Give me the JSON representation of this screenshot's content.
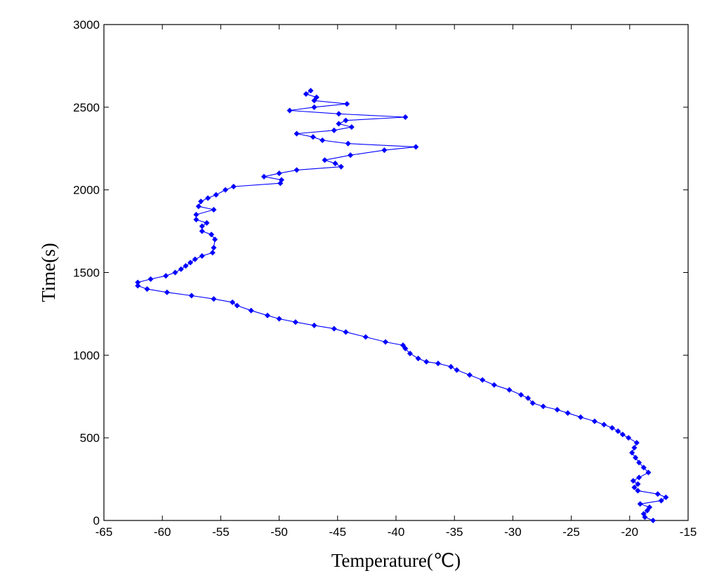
{
  "chart_data": {
    "type": "line",
    "title": "",
    "xlabel": "Temperature(℃)",
    "ylabel": "Time(s)",
    "xlim": [
      -65,
      -15
    ],
    "ylim": [
      0,
      3000
    ],
    "xticks": [
      -65,
      -60,
      -55,
      -50,
      -45,
      -40,
      -35,
      -30,
      -25,
      -20,
      -15
    ],
    "yticks": [
      0,
      500,
      1000,
      1500,
      2000,
      2500,
      3000
    ],
    "grid": false,
    "legend": "none",
    "series": [
      {
        "color": "#0000ff",
        "marker": "diamond",
        "points": [
          [
            -18.0,
            0
          ],
          [
            -18.7,
            20
          ],
          [
            -18.8,
            40
          ],
          [
            -18.5,
            60
          ],
          [
            -18.3,
            80
          ],
          [
            -19.1,
            100
          ],
          [
            -17.3,
            120
          ],
          [
            -16.9,
            140
          ],
          [
            -17.6,
            160
          ],
          [
            -19.3,
            180
          ],
          [
            -19.6,
            200
          ],
          [
            -19.3,
            220
          ],
          [
            -19.7,
            240
          ],
          [
            -19.2,
            260
          ],
          [
            -18.4,
            290
          ],
          [
            -18.8,
            320
          ],
          [
            -19.2,
            350
          ],
          [
            -19.5,
            380
          ],
          [
            -19.8,
            410
          ],
          [
            -19.6,
            440
          ],
          [
            -19.4,
            470
          ],
          [
            -20.1,
            500
          ],
          [
            -20.6,
            520
          ],
          [
            -21.0,
            540
          ],
          [
            -21.5,
            560
          ],
          [
            -22.2,
            580
          ],
          [
            -23.0,
            600
          ],
          [
            -24.2,
            625
          ],
          [
            -25.3,
            650
          ],
          [
            -26.2,
            670
          ],
          [
            -27.4,
            690
          ],
          [
            -28.3,
            710
          ],
          [
            -28.7,
            740
          ],
          [
            -29.3,
            760
          ],
          [
            -30.3,
            790
          ],
          [
            -31.6,
            820
          ],
          [
            -32.6,
            850
          ],
          [
            -33.7,
            880
          ],
          [
            -34.8,
            910
          ],
          [
            -35.3,
            930
          ],
          [
            -36.4,
            950
          ],
          [
            -37.4,
            960
          ],
          [
            -38.1,
            980
          ],
          [
            -38.8,
            1010
          ],
          [
            -39.2,
            1040
          ],
          [
            -39.4,
            1060
          ],
          [
            -40.9,
            1080
          ],
          [
            -42.6,
            1110
          ],
          [
            -44.3,
            1140
          ],
          [
            -45.3,
            1160
          ],
          [
            -47.0,
            1180
          ],
          [
            -48.6,
            1200
          ],
          [
            -50.0,
            1220
          ],
          [
            -51.0,
            1240
          ],
          [
            -52.4,
            1270
          ],
          [
            -53.6,
            1300
          ],
          [
            -54.0,
            1320
          ],
          [
            -55.6,
            1340
          ],
          [
            -57.5,
            1360
          ],
          [
            -59.6,
            1380
          ],
          [
            -61.3,
            1400
          ],
          [
            -62.1,
            1420
          ],
          [
            -62.1,
            1440
          ],
          [
            -61.0,
            1460
          ],
          [
            -59.7,
            1480
          ],
          [
            -58.9,
            1500
          ],
          [
            -58.4,
            1520
          ],
          [
            -58.0,
            1540
          ],
          [
            -57.6,
            1560
          ],
          [
            -57.2,
            1580
          ],
          [
            -56.6,
            1600
          ],
          [
            -55.7,
            1620
          ],
          [
            -55.6,
            1650
          ],
          [
            -55.5,
            1700
          ],
          [
            -55.8,
            1730
          ],
          [
            -56.6,
            1750
          ],
          [
            -56.6,
            1780
          ],
          [
            -56.2,
            1800
          ],
          [
            -57.1,
            1820
          ],
          [
            -57.1,
            1850
          ],
          [
            -55.6,
            1880
          ],
          [
            -56.9,
            1900
          ],
          [
            -56.7,
            1930
          ],
          [
            -56.1,
            1950
          ],
          [
            -55.4,
            1970
          ],
          [
            -54.6,
            2000
          ],
          [
            -53.9,
            2020
          ],
          [
            -49.9,
            2040
          ],
          [
            -49.8,
            2060
          ],
          [
            -51.3,
            2080
          ],
          [
            -50.0,
            2100
          ],
          [
            -48.5,
            2120
          ],
          [
            -44.7,
            2140
          ],
          [
            -45.2,
            2160
          ],
          [
            -46.1,
            2180
          ],
          [
            -43.9,
            2210
          ],
          [
            -41.0,
            2240
          ],
          [
            -38.3,
            2260
          ],
          [
            -44.1,
            2280
          ],
          [
            -46.3,
            2300
          ],
          [
            -47.1,
            2320
          ],
          [
            -48.5,
            2340
          ],
          [
            -45.3,
            2360
          ],
          [
            -43.8,
            2380
          ],
          [
            -44.9,
            2400
          ],
          [
            -44.3,
            2420
          ],
          [
            -39.2,
            2440
          ],
          [
            -44.9,
            2460
          ],
          [
            -49.1,
            2480
          ],
          [
            -47.0,
            2500
          ],
          [
            -44.2,
            2520
          ],
          [
            -47.0,
            2540
          ],
          [
            -46.8,
            2560
          ],
          [
            -47.7,
            2580
          ],
          [
            -47.3,
            2600
          ]
        ]
      }
    ]
  }
}
